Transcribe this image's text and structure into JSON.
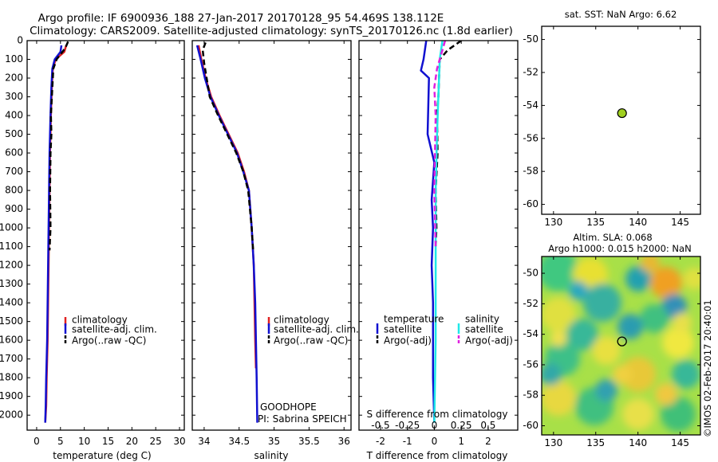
{
  "header": {
    "line1": "Argo profile: IF 6900936_188 27-Jan-2017 20170128_95 54.469S 138.112E",
    "line2": "Climatology: CARS2009. Satellite-adjusted climatology: synTS_20170126.nc (1.8d earlier)"
  },
  "colors": {
    "climatology": "#e02020",
    "satellite": "#1010d0",
    "argo": "#000000",
    "sat_salinity": "#20e8e8",
    "argo_salinity": "#e020e0",
    "float_marker": "#a0d020"
  },
  "watermark": "©IMOS 02-Feb-2017 20:40:01",
  "chart_data": [
    {
      "id": "temperature",
      "type": "line",
      "xlabel": "temperature (deg C)",
      "xlim": [
        -2,
        31
      ],
      "xticks": [
        0,
        5,
        10,
        15,
        20,
        25,
        30
      ],
      "ylim": [
        2080,
        0
      ],
      "yticks": [
        0,
        100,
        200,
        300,
        400,
        500,
        600,
        700,
        800,
        900,
        1000,
        1100,
        1200,
        1300,
        1400,
        1500,
        1600,
        1700,
        1800,
        1900,
        2000
      ],
      "legend": [
        "climatology",
        "satellite-adj. clim.",
        "Argo(..raw -QC)"
      ],
      "series": [
        {
          "name": "climatology",
          "color_key": "climatology",
          "dash": false,
          "x": [
            6.2,
            5.8,
            4.0,
            3.4,
            3.2,
            3.0,
            2.9,
            2.8,
            2.7,
            2.6,
            2.5,
            2.4,
            2.3,
            2.1,
            2.0,
            1.8
          ],
          "y": [
            25,
            60,
            100,
            150,
            250,
            400,
            500,
            600,
            800,
            1000,
            1200,
            1400,
            1600,
            1800,
            1950,
            2040
          ]
        },
        {
          "name": "satellite-adj. clim.",
          "color_key": "satellite",
          "dash": false,
          "x": [
            5.2,
            5.0,
            3.8,
            3.3,
            3.1,
            2.9,
            2.8,
            2.7,
            2.6,
            2.5,
            2.4,
            2.3,
            2.2,
            2.0,
            1.9,
            1.8
          ],
          "y": [
            25,
            60,
            100,
            150,
            250,
            400,
            500,
            600,
            800,
            1000,
            1200,
            1400,
            1600,
            1800,
            1950,
            2040
          ]
        },
        {
          "name": "Argo(..raw -QC)",
          "color_key": "argo",
          "dash": true,
          "x": [
            6.6,
            6.0,
            4.2,
            3.5,
            3.3,
            3.0,
            3.1,
            2.9,
            2.8,
            2.9,
            2.7
          ],
          "y": [
            5,
            40,
            100,
            150,
            250,
            400,
            500,
            600,
            800,
            1000,
            1120
          ]
        }
      ]
    },
    {
      "id": "salinity",
      "type": "line",
      "xlabel": "salinity",
      "xlim": [
        33.83,
        36.1
      ],
      "xticks": [
        34,
        34.5,
        35,
        35.5,
        36
      ],
      "ylim": [
        2080,
        0
      ],
      "legend": [
        "climatology",
        "satellite-adj. clim.",
        "Argo(..raw -QC)"
      ],
      "annotation": [
        "GOODHOPE",
        "PI: Sabrina SPEICH"
      ],
      "series": [
        {
          "name": "climatology",
          "color_key": "climatology",
          "dash": false,
          "x": [
            33.92,
            33.96,
            34.02,
            34.1,
            34.22,
            34.35,
            34.48,
            34.57,
            34.64,
            34.68,
            34.71,
            34.72,
            34.73,
            34.74
          ],
          "y": [
            25,
            100,
            200,
            300,
            400,
            500,
            600,
            700,
            800,
            1000,
            1200,
            1400,
            1600,
            1750
          ]
        },
        {
          "name": "satellite-adj. clim.",
          "color_key": "satellite",
          "dash": false,
          "x": [
            33.9,
            33.95,
            34.01,
            34.09,
            34.21,
            34.34,
            34.47,
            34.56,
            34.64,
            34.68,
            34.71,
            34.73,
            34.74,
            34.75,
            34.76
          ],
          "y": [
            25,
            100,
            200,
            300,
            400,
            500,
            600,
            700,
            800,
            1000,
            1200,
            1400,
            1600,
            1800,
            2040
          ]
        },
        {
          "name": "Argo(..raw -QC)",
          "color_key": "argo",
          "dash": true,
          "x": [
            34.02,
            33.98,
            34.0,
            34.08,
            34.2,
            34.33,
            34.46,
            34.56,
            34.63,
            34.68,
            34.7
          ],
          "y": [
            10,
            50,
            120,
            300,
            400,
            500,
            600,
            700,
            800,
            1000,
            1120
          ]
        }
      ]
    },
    {
      "id": "difference",
      "type": "line",
      "xlabel": "T difference from climatology",
      "xlabel2": "S difference from climatology",
      "xlim": [
        -2.8,
        3.1
      ],
      "xticks": [
        -2,
        -1,
        0,
        1,
        2
      ],
      "xticks2_labels": [
        "-0.5",
        "-0.25",
        "0",
        "0.25",
        "0.5"
      ],
      "ylim": [
        2080,
        0
      ],
      "legend_titles": [
        "temperature",
        "salinity"
      ],
      "legend": [
        "satellite",
        "Argo(-adj)",
        "satellite",
        "Argo(-adj)"
      ],
      "series": [
        {
          "name": "temperature satellite",
          "color_key": "satellite",
          "dash": false,
          "x": [
            -0.3,
            -0.35,
            -0.4,
            -0.5,
            -0.2,
            -0.25,
            0.0,
            -0.1,
            -0.05,
            -0.1,
            -0.05,
            -0.05,
            -0.05,
            0.0
          ],
          "y": [
            0,
            50,
            100,
            160,
            200,
            500,
            650,
            850,
            1000,
            1200,
            1400,
            1600,
            1800,
            2040
          ]
        },
        {
          "name": "temperature Argo(-adj)",
          "color_key": "argo",
          "dash": true,
          "x": [
            1.0,
            0.5,
            0.2,
            0.15,
            0.1,
            0.12,
            0.05,
            0.08,
            0.05
          ],
          "y": [
            0,
            50,
            100,
            300,
            400,
            600,
            800,
            1000,
            1100
          ]
        },
        {
          "name": "salinity satellite",
          "color_key": "sat_salinity",
          "dash": false,
          "x": [
            0.3,
            0.2,
            0.15,
            0.1,
            0.05,
            0.05,
            0.05,
            0.0
          ],
          "y": [
            0,
            100,
            300,
            500,
            800,
            1200,
            1600,
            2040
          ]
        },
        {
          "name": "salinity Argo(-adj)",
          "color_key": "argo_salinity",
          "dash": true,
          "x": [
            0.4,
            0.3,
            0.1,
            0.0,
            0.05,
            0.0,
            0.05
          ],
          "y": [
            0,
            50,
            150,
            250,
            400,
            800,
            1100
          ]
        }
      ]
    },
    {
      "id": "sst_map",
      "type": "scatter",
      "title": "sat. SST: NaN  Argo: 6.62",
      "xlim": [
        128.6,
        147.4
      ],
      "xticks": [
        130,
        135,
        140,
        145
      ],
      "ylim": [
        -60.6,
        -49.2
      ],
      "yticks": [
        -50,
        -52,
        -54,
        -56,
        -58,
        -60
      ],
      "points": [
        {
          "x": 138.112,
          "y": -54.469
        }
      ]
    },
    {
      "id": "sla_map",
      "type": "heatmap",
      "title_line1": "Altim. SLA: 0.068",
      "title_line2": "Argo h1000: 0.015 h2000: NaN",
      "xlim": [
        128.6,
        147.4
      ],
      "xticks": [
        130,
        135,
        140,
        145
      ],
      "ylim": [
        -60.6,
        -48.9
      ],
      "yticks": [
        -50,
        -52,
        -54,
        -56,
        -58,
        -60
      ],
      "points": [
        {
          "x": 138.112,
          "y": -54.469
        }
      ]
    }
  ]
}
